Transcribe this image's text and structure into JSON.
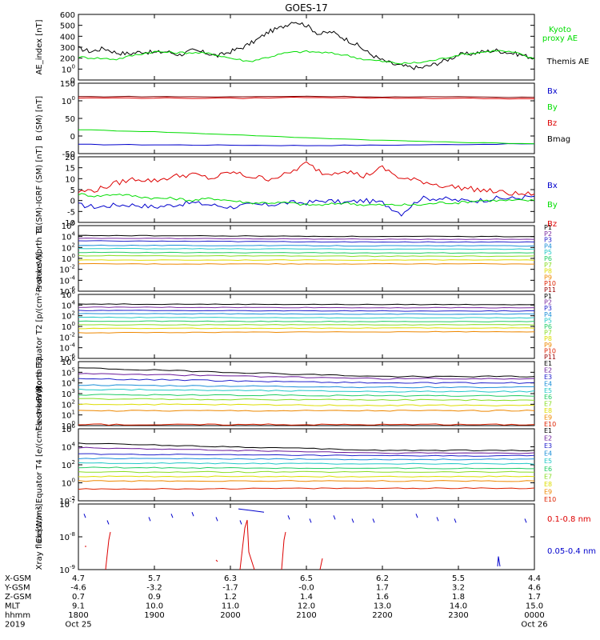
{
  "title": "GOES-17",
  "colors": {
    "black": "#000000",
    "green": "#00dd00",
    "blue": "#0000cc",
    "red": "#dd0000",
    "darkred": "#7a0000",
    "proton_channels": [
      "#000000",
      "#7a2aa0",
      "#2222cc",
      "#1b8fd8",
      "#22c8c8",
      "#22cc66",
      "#88dd22",
      "#dddd00",
      "#ee8800",
      "#dd2200",
      "#990000"
    ],
    "electron_channels": [
      "#000000",
      "#6a1a9a",
      "#2222cc",
      "#1b8fd8",
      "#22c8c8",
      "#22cc66",
      "#88dd22",
      "#dddd00",
      "#ee8800",
      "#dd2200",
      "#990000"
    ]
  },
  "chart_data": [
    {
      "type": "line",
      "ylabel": "AE_index [nT]",
      "ylim": [
        0,
        600
      ],
      "yticks": [
        "0",
        "100",
        "200",
        "300",
        "400",
        "500",
        "600"
      ],
      "xlim": [
        0,
        360
      ],
      "series": [
        {
          "name": "Themis AE",
          "color": "#000000",
          "x": [
            0,
            10,
            20,
            30,
            40,
            50,
            60,
            70,
            80,
            90,
            100,
            110,
            120,
            130,
            140,
            150,
            160,
            170,
            180,
            190,
            200,
            210,
            220,
            230,
            240,
            250,
            260,
            270,
            280,
            290,
            300,
            310,
            320,
            330,
            340,
            350,
            360
          ],
          "y": [
            290,
            260,
            290,
            250,
            240,
            260,
            250,
            260,
            230,
            270,
            250,
            220,
            260,
            300,
            360,
            440,
            480,
            540,
            500,
            420,
            440,
            380,
            320,
            240,
            180,
            140,
            120,
            110,
            140,
            180,
            230,
            240,
            260,
            270,
            250,
            230,
            200
          ]
        },
        {
          "name": "Kyoto proxy AE",
          "color": "#00dd00",
          "x": [
            0,
            15,
            30,
            45,
            60,
            75,
            90,
            105,
            120,
            135,
            150,
            165,
            180,
            195,
            210,
            225,
            240,
            255,
            270,
            285,
            300,
            315,
            330,
            345,
            360
          ],
          "y": [
            210,
            200,
            190,
            230,
            260,
            250,
            250,
            240,
            200,
            170,
            210,
            250,
            260,
            250,
            230,
            190,
            170,
            150,
            160,
            190,
            230,
            250,
            270,
            250,
            190
          ]
        }
      ],
      "legend": [
        "Kyoto proxy AE",
        "Themis AE"
      ]
    },
    {
      "type": "line",
      "ylabel": "B (SM) [nT]",
      "ylim": [
        -50,
        150
      ],
      "yticks": [
        "-50",
        "0",
        "50",
        "100",
        "150"
      ],
      "xlim": [
        0,
        360
      ],
      "series": [
        {
          "name": "Bx",
          "color": "#0000cc",
          "x": [
            0,
            60,
            120,
            180,
            240,
            300,
            360
          ],
          "y": [
            -24,
            -25,
            -26,
            -27,
            -26,
            -24,
            -22
          ]
        },
        {
          "name": "By",
          "color": "#00dd00",
          "x": [
            0,
            60,
            120,
            180,
            240,
            300,
            360
          ],
          "y": [
            18,
            12,
            4,
            -5,
            -12,
            -18,
            -22
          ]
        },
        {
          "name": "Bz",
          "color": "#dd0000",
          "x": [
            0,
            60,
            120,
            180,
            240,
            300,
            360
          ],
          "y": [
            108,
            108,
            107,
            110,
            108,
            107,
            106
          ]
        },
        {
          "name": "Bmag",
          "color": "#7a0000",
          "x": [
            0,
            60,
            120,
            180,
            240,
            300,
            360
          ],
          "y": [
            112,
            112,
            111,
            113,
            111,
            111,
            110
          ]
        }
      ],
      "legend": [
        "Bx",
        "By",
        "Bz",
        "Bmag"
      ]
    },
    {
      "type": "line",
      "ylabel": "B (SM)-IGRF (SM) [nT]",
      "ylim": [
        -10,
        20
      ],
      "yticks": [
        "-10",
        "-5",
        "0",
        "5",
        "10",
        "15",
        "20"
      ],
      "xlim": [
        0,
        360
      ],
      "series": [
        {
          "name": "Bx",
          "color": "#0000cc",
          "x": [
            0,
            15,
            30,
            45,
            60,
            75,
            90,
            105,
            120,
            135,
            150,
            165,
            180,
            195,
            210,
            225,
            240,
            255,
            270,
            285,
            300,
            315,
            330,
            345,
            360
          ],
          "y": [
            -2,
            -3,
            -2,
            -2,
            -3,
            -2,
            -1,
            -2,
            -3,
            -2,
            -2,
            -1,
            -1,
            0,
            -1,
            0,
            -1,
            -6,
            1,
            1,
            0,
            0,
            1,
            1,
            2
          ]
        },
        {
          "name": "By",
          "color": "#00dd00",
          "x": [
            0,
            15,
            30,
            45,
            60,
            75,
            90,
            105,
            120,
            135,
            150,
            165,
            180,
            195,
            210,
            225,
            240,
            255,
            270,
            285,
            300,
            315,
            330,
            345,
            360
          ],
          "y": [
            3,
            2,
            3,
            2,
            1,
            1,
            0,
            1,
            0,
            -1,
            -1,
            -1,
            -2,
            -2,
            -1,
            -2,
            -2,
            -2,
            -2,
            -1,
            -1,
            0,
            0,
            0,
            0
          ]
        },
        {
          "name": "Bz",
          "color": "#dd0000",
          "x": [
            0,
            15,
            30,
            45,
            60,
            75,
            90,
            105,
            120,
            135,
            150,
            165,
            180,
            195,
            210,
            225,
            240,
            255,
            270,
            285,
            300,
            315,
            330,
            345,
            360
          ],
          "y": [
            4,
            5,
            8,
            10,
            9,
            11,
            12,
            10,
            13,
            11,
            10,
            12,
            17,
            12,
            14,
            11,
            15,
            10,
            9,
            7,
            6,
            5,
            4,
            3,
            3
          ]
        }
      ],
      "legend": [
        "Bx",
        "By",
        "Bz"
      ]
    },
    {
      "type": "line",
      "scale": "log",
      "ylabel": "Protons North T1",
      "yticks": [
        "10-6",
        "10-4",
        "10-2",
        "100",
        "102",
        "104",
        "106"
      ],
      "ylim_exp": [
        -6,
        6
      ],
      "xlim": [
        0,
        360
      ],
      "channels": [
        "P1",
        "P2",
        "P3",
        "P4",
        "P5",
        "P6",
        "P7",
        "P8",
        "P9",
        "P10",
        "P11"
      ],
      "series_log10_start": [
        4.2,
        3.7,
        3.2,
        2.4,
        1.8,
        1.1,
        0.5,
        -0.3,
        -1.0
      ],
      "series_log10_end": [
        4.0,
        3.5,
        3.0,
        2.3,
        1.7,
        1.0,
        0.4,
        -0.3,
        -1.0
      ]
    },
    {
      "type": "line",
      "scale": "log",
      "ylabel": "Protons Equator T2 [p/(cm²-s-sr-keV)]",
      "yticks": [
        "10-6",
        "10-4",
        "10-2",
        "100",
        "102",
        "104",
        "106"
      ],
      "ylim_exp": [
        -6,
        6
      ],
      "xlim": [
        0,
        360
      ],
      "channels": [
        "P1",
        "P2",
        "P3",
        "P4",
        "P5",
        "P6",
        "P7",
        "P8",
        "P9",
        "P10",
        "P11"
      ],
      "series_log10_start": [
        4.2,
        3.6,
        3.0,
        2.4,
        1.7,
        1.0,
        0.3,
        -0.4,
        -1.2
      ],
      "series_log10_end": [
        4.1,
        3.5,
        2.9,
        2.3,
        1.6,
        0.9,
        0.3,
        -0.3,
        -1.0
      ]
    },
    {
      "type": "line",
      "scale": "log",
      "ylabel": "Electrons North T3",
      "yticks": [
        "100",
        "101",
        "102",
        "103",
        "104",
        "105",
        "106"
      ],
      "ylim_exp": [
        0,
        6
      ],
      "xlim": [
        0,
        360
      ],
      "channels": [
        "E1",
        "E2",
        "E3",
        "E4",
        "E5",
        "E6",
        "E7",
        "E8",
        "E9",
        "E10"
      ],
      "series_log10_start": [
        5.4,
        4.9,
        4.4,
        3.8,
        3.4,
        2.9,
        2.5,
        2.0,
        1.4,
        0.1
      ],
      "series_log10_end": [
        4.6,
        4.4,
        4.0,
        3.6,
        3.2,
        2.8,
        2.4,
        1.9,
        1.4,
        0.1
      ]
    },
    {
      "type": "line",
      "scale": "log",
      "ylabel": "Electrons Equator T4 [e/(cm²-s-sr-keV)]",
      "yticks": [
        "10-2",
        "100",
        "102",
        "104",
        "106"
      ],
      "ylim_exp": [
        -2,
        6
      ],
      "xlim": [
        0,
        360
      ],
      "channels": [
        "E1",
        "E2",
        "E3",
        "E4",
        "E5",
        "E6",
        "E7",
        "E8",
        "E9",
        "E10"
      ],
      "series_log10_start": [
        4.4,
        3.9,
        3.2,
        2.7,
        2.2,
        1.7,
        1.2,
        0.7,
        0.2,
        -0.7
      ],
      "series_log10_end": [
        3.6,
        3.3,
        3.0,
        2.6,
        2.1,
        1.6,
        1.2,
        0.7,
        0.2,
        -0.6
      ]
    },
    {
      "type": "line",
      "scale": "log",
      "ylabel": "Xray flux [W/m²]",
      "yticks": [
        "10-9",
        "10-8",
        "10-7"
      ],
      "ylim_exp": [
        -9,
        -7
      ],
      "xlim": [
        0,
        360
      ],
      "series": [
        {
          "name": "0.1-0.8 nm",
          "color": "#dd0000"
        },
        {
          "name": "0.05-0.4 nm",
          "color": "#0000cc"
        }
      ]
    }
  ],
  "orbit": {
    "rows": [
      {
        "label": "X-GSM",
        "values": [
          "4.7",
          "5.7",
          "6.3",
          "6.5",
          "6.2",
          "5.5",
          "4.4"
        ]
      },
      {
        "label": "Y-GSM",
        "values": [
          "-4.6",
          "-3.2",
          "-1.7",
          "-0.0",
          "1.7",
          "3.2",
          "4.6"
        ]
      },
      {
        "label": "Z-GSM",
        "values": [
          "0.7",
          "0.9",
          "1.2",
          "1.4",
          "1.6",
          "1.8",
          "1.7"
        ]
      },
      {
        "label": "MLT",
        "values": [
          "9.1",
          "10.0",
          "11.0",
          "12.0",
          "13.0",
          "14.0",
          "15.0"
        ]
      },
      {
        "label": "hhmm",
        "values": [
          "1800",
          "1900",
          "2000",
          "2100",
          "2200",
          "2300",
          "0000"
        ]
      },
      {
        "label": "2019",
        "values": [
          "Oct 25",
          "",
          "",
          "",
          "",
          "",
          "Oct 26"
        ]
      }
    ]
  }
}
